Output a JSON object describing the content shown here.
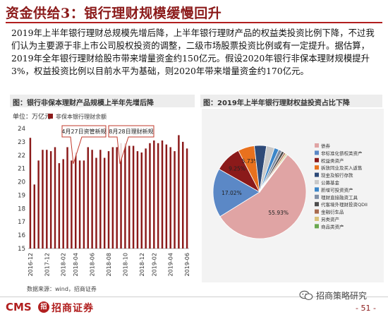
{
  "slide": {
    "title": "资金供给3：银行理财规模缓慢回升",
    "paragraph": "2019年上半年银行理财总规模先增后降，上半年银行理财产品的权益类投资比例下降，不过我们认为主要源于非上市公司股权投资的调整，二级市场股票投资比例或有一定提升。据估算，2019年全年银行理财给股市带来增量资金约150亿元。假设2020年银行非保本理财规模提升3%，权益投资比例以目前水平为基础，则2020年带来增量资金约170亿元。"
  },
  "left_panel": {
    "title": "图：银行非保本理财产品规模上半年先增后降",
    "unit": "单位：万亿元",
    "annotations": [
      "4月27日资管新规",
      "8月28日理财新规"
    ]
  },
  "right_panel": {
    "title": "图：2019年上半年银行理财权益投资占比下降"
  },
  "colors": {
    "title": "#8b1a1a",
    "bar": "#8b1a1a",
    "annotation_box": "#c0392b"
  },
  "chart_data": [
    {
      "type": "bar",
      "title": "",
      "xlabel": "",
      "ylabel": "",
      "ylim": [
        15,
        24
      ],
      "yticks": [
        15,
        16,
        17,
        18,
        19,
        20,
        21,
        22,
        23,
        24
      ],
      "legend": "top-left",
      "series": [
        {
          "name": "非保本银行理财余额",
          "values": [
            23.3,
            19.8,
            21.6,
            22.4,
            22.4,
            22.3,
            22.6,
            21.4,
            21.7,
            22.6,
            21.6,
            22.2,
            21.6,
            21.6,
            22.6,
            22.4,
            21.8,
            22.4,
            21.8,
            22.3,
            22.6,
            22.6,
            22.9,
            22.9,
            22.7,
            22.7,
            22.3,
            22.2,
            22.5,
            22.9,
            23.1,
            22.9,
            23.1,
            22.8,
            22.6,
            22.3,
            23.5,
            23.0,
            22.5
          ]
        }
      ],
      "tick_labels": [
        "2016-12",
        "2017-12",
        "2018-02",
        "2018-04",
        "2018-06",
        "2018-08",
        "2018-10",
        "2018-12",
        "2019-02",
        "2019-04",
        "2019-06"
      ]
    },
    {
      "type": "pie",
      "title": "",
      "legend": "right",
      "slices": [
        {
          "label": "债券",
          "value": 55.93,
          "color": "#e0a4a4",
          "value_label": "55.93%"
        },
        {
          "label": "非标准化债权类资产",
          "value": 17.02,
          "color": "#5b88c6",
          "value_label": "17.02%"
        },
        {
          "label": "权益类资产",
          "value": 9.25,
          "color": "#8b1a1a",
          "value_label": "9.25%"
        },
        {
          "label": "拆放同业及买入返售",
          "value": 5.73,
          "color": "#e8711e",
          "value_label": "5.73%"
        },
        {
          "label": "现金及银行存款",
          "value": 4.2,
          "color": "#2e4a78",
          "value_label": ""
        },
        {
          "label": "公募基金",
          "value": 2.8,
          "color": "#c9c9c9",
          "value_label": ""
        },
        {
          "label": "新增可投资资产",
          "value": 1.6,
          "color": "#3b86c9",
          "value_label": ""
        },
        {
          "label": "理财直接融资工具",
          "value": 1.2,
          "color": "#7f8fa6",
          "value_label": ""
        },
        {
          "label": "代客境外理财投资QDII",
          "value": 0.9,
          "color": "#4d4d4d",
          "value_label": ""
        },
        {
          "label": "金融衍生品",
          "value": 0.6,
          "color": "#a86b4f",
          "value_label": ""
        },
        {
          "label": "另类资产",
          "value": 0.5,
          "color": "#d9c27a",
          "value_label": ""
        },
        {
          "label": "商品类资产",
          "value": 0.27,
          "color": "#6aa84f",
          "value_label": ""
        }
      ]
    }
  ],
  "footer": {
    "source": "数据来源：wind，招商证券",
    "logo_cms": "CMS",
    "logo_badge": "招",
    "logo_name": "招商证券",
    "brand_watermark": "招商策略研究",
    "page_number": "- 51 -"
  }
}
